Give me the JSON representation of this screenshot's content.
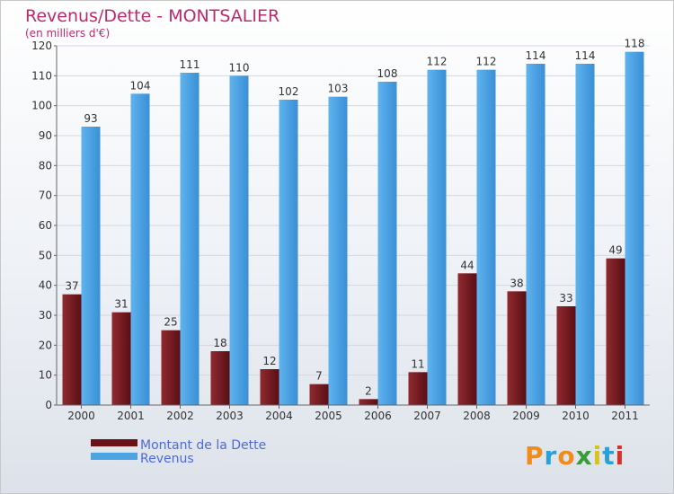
{
  "chart_data": {
    "type": "bar",
    "title": "Revenus/Dette - MONTSALIER",
    "subtitle": "(en milliers d'€)",
    "categories": [
      "2000",
      "2001",
      "2002",
      "2003",
      "2004",
      "2005",
      "2006",
      "2007",
      "2008",
      "2009",
      "2010",
      "2011"
    ],
    "series": [
      {
        "name": "Montant de la Dette",
        "color": "#7a1f24",
        "values": [
          37,
          31,
          25,
          18,
          12,
          7,
          2,
          11,
          44,
          38,
          33,
          49
        ]
      },
      {
        "name": "Revenus",
        "color": "#4ea3e3",
        "values": [
          93,
          104,
          111,
          110,
          102,
          103,
          108,
          112,
          112,
          114,
          114,
          118
        ]
      }
    ],
    "ylim": [
      0,
      120
    ],
    "yticks": [
      0,
      10,
      20,
      30,
      40,
      50,
      60,
      70,
      80,
      90,
      100,
      110,
      120
    ],
    "grid": true,
    "legend": "bottom-left"
  },
  "branding": {
    "logo_letters": [
      "P",
      "r",
      "o",
      "x",
      "i",
      "t",
      "i"
    ],
    "logo_colors": [
      "#f08c1e",
      "#2aa0d8",
      "#f08c1e",
      "#3a9b3a",
      "#d9c21c",
      "#2aa0d8",
      "#d9302a"
    ]
  }
}
